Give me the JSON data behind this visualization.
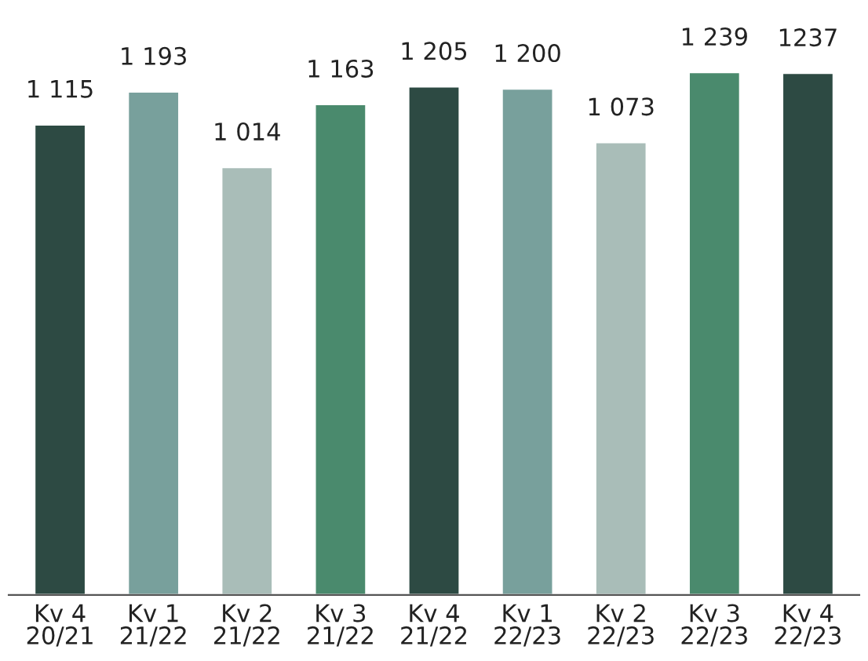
{
  "chart_data": {
    "type": "bar",
    "categories": [
      "Kv 4\n20/21",
      "Kv 1\n21/22",
      "Kv 2\n21/22",
      "Kv 3\n21/22",
      "Kv 4\n21/22",
      "Kv 1\n22/23",
      "Kv 2\n22/23",
      "Kv 3\n22/23",
      "Kv 4\n22/23"
    ],
    "values": [
      1115,
      1193,
      1014,
      1163,
      1205,
      1200,
      1073,
      1239,
      1237
    ],
    "value_labels": [
      "1 115",
      "1 193",
      "1 014",
      "1 163",
      "1 205",
      "1 200",
      "1 073",
      "1 239",
      "1237"
    ],
    "colors": [
      "#2d4a43",
      "#78a09c",
      "#a9bdb8",
      "#4a8a6d",
      "#2d4a43",
      "#78a09c",
      "#a9bdb8",
      "#4a8a6d",
      "#2d4a43"
    ],
    "tick_labels": "x",
    "grid": false,
    "legend": false
  }
}
